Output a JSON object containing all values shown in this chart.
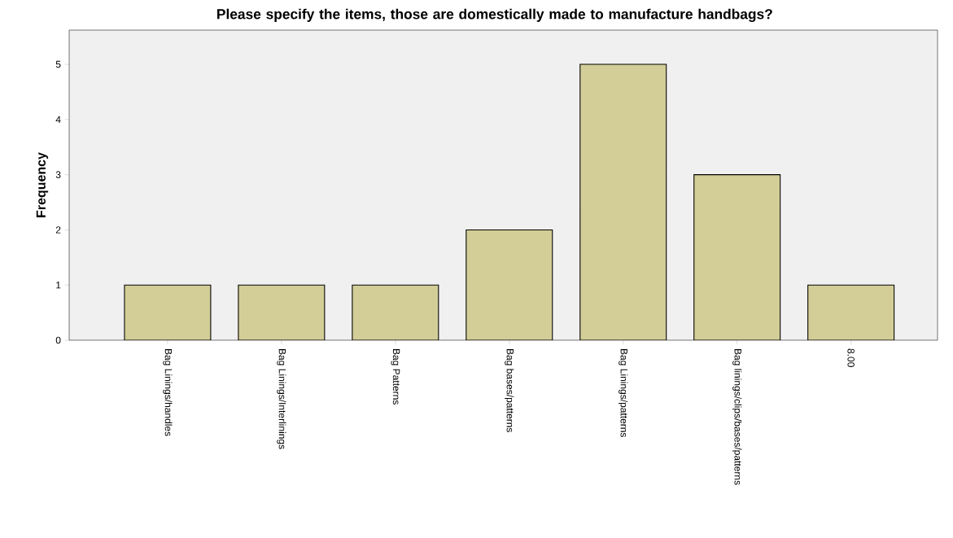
{
  "chart_data": {
    "type": "bar",
    "title": "Please specify the items, those are domestically made to manufacture handbags?",
    "ylabel": "Frequency",
    "categories": [
      "Bag Linings/handles",
      "Bag Linings/Interlinings",
      "Bag Patterns",
      "Bag bases/patterns",
      "Bag Linings/patterns",
      "Bag linings/clips/bases/patterns",
      "8.00"
    ],
    "values": [
      1,
      1,
      1,
      2,
      5,
      3,
      1
    ],
    "color": "#d3ce97",
    "ylim": [
      0,
      5.62
    ],
    "yticks": [
      0,
      1,
      2,
      3,
      4,
      5
    ]
  }
}
